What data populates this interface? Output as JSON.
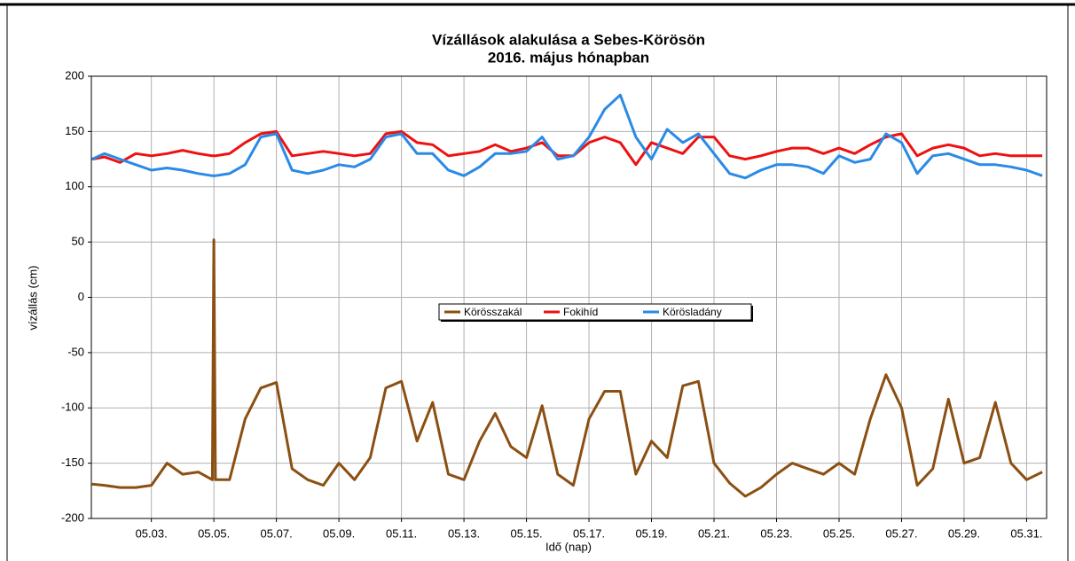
{
  "chart_data": {
    "type": "line",
    "title": "Vízállások alakulása a Sebes-Körösön",
    "subtitle": "2016. május hónapban",
    "x_label": "Idő (nap)",
    "y_label": "vízállás (cm)",
    "xlim": [
      1.08,
      31.64
    ],
    "ylim": [
      -200,
      200
    ],
    "xticks": [
      {
        "value": 3,
        "label": "05.03."
      },
      {
        "value": 5,
        "label": "05.05."
      },
      {
        "value": 7,
        "label": "05.07."
      },
      {
        "value": 9,
        "label": "05.09."
      },
      {
        "value": 11,
        "label": "05.11."
      },
      {
        "value": 13,
        "label": "05.13."
      },
      {
        "value": 15,
        "label": "05.15."
      },
      {
        "value": 17,
        "label": "05.17."
      },
      {
        "value": 19,
        "label": "05.19."
      },
      {
        "value": 21,
        "label": "05.21."
      },
      {
        "value": 23,
        "label": "05.23."
      },
      {
        "value": 25,
        "label": "05.25."
      },
      {
        "value": 27,
        "label": "05.27."
      },
      {
        "value": 29,
        "label": "05.29."
      },
      {
        "value": 31,
        "label": "05.31."
      }
    ],
    "yticks": [
      -200,
      -150,
      -100,
      -50,
      0,
      50,
      100,
      150,
      200
    ],
    "grid": true,
    "legend": "center",
    "x": [
      1.1,
      1.5,
      2,
      2.5,
      3,
      3.5,
      4,
      4.5,
      4.95,
      5,
      5.05,
      5.5,
      6,
      6.5,
      7,
      7.5,
      8,
      8.5,
      9,
      9.5,
      10,
      10.5,
      11,
      11.5,
      12,
      12.5,
      13,
      13.5,
      14,
      14.5,
      15,
      15.5,
      16,
      16.5,
      17,
      17.5,
      18,
      18.5,
      19,
      19.5,
      20,
      20.5,
      21,
      21.5,
      22,
      22.5,
      23,
      23.5,
      24,
      24.5,
      25,
      25.5,
      26,
      26.5,
      27,
      27.5,
      28,
      28.5,
      29,
      29.5,
      30,
      30.5,
      31,
      31.5
    ],
    "series": [
      {
        "name": "Körösszakál",
        "color": "#8b4f12",
        "values": [
          -169,
          -170,
          -172,
          -172,
          -170,
          -150,
          -160,
          -158,
          -165,
          52,
          -165,
          -165,
          -110,
          -82,
          -77,
          -155,
          -165,
          -170,
          -150,
          -165,
          -145,
          -82,
          -76,
          -130,
          -95,
          -160,
          -165,
          -130,
          -105,
          -135,
          -145,
          -98,
          -160,
          -170,
          -110,
          -85,
          -85,
          -160,
          -130,
          -145,
          -80,
          -76,
          -150,
          -168,
          -180,
          -172,
          -160,
          -150,
          -155,
          -160,
          -150,
          -160,
          -110,
          -70,
          -100,
          -170,
          -155,
          -92,
          -150,
          -145,
          -95,
          -150,
          -165,
          -158
        ]
      },
      {
        "name": "Fokihíd",
        "color": "#ee1111",
        "values": [
          125,
          127,
          122,
          130,
          128,
          130,
          133,
          130,
          128,
          128,
          128,
          130,
          140,
          148,
          150,
          128,
          130,
          132,
          130,
          128,
          130,
          148,
          150,
          140,
          138,
          128,
          130,
          132,
          138,
          132,
          135,
          140,
          128,
          128,
          140,
          145,
          140,
          120,
          140,
          135,
          130,
          145,
          145,
          128,
          125,
          128,
          132,
          135,
          135,
          130,
          135,
          130,
          138,
          145,
          148,
          128,
          135,
          138,
          135,
          128,
          130,
          128,
          128,
          128
        ]
      },
      {
        "name": "Körösladány",
        "color": "#2a8ae6",
        "values": [
          125,
          130,
          125,
          120,
          115,
          117,
          115,
          112,
          110,
          110,
          110,
          112,
          120,
          145,
          148,
          115,
          112,
          115,
          120,
          118,
          125,
          145,
          148,
          130,
          130,
          115,
          110,
          118,
          130,
          130,
          132,
          145,
          125,
          128,
          145,
          170,
          183,
          145,
          125,
          152,
          140,
          148,
          130,
          112,
          108,
          115,
          120,
          120,
          118,
          112,
          128,
          122,
          125,
          148,
          140,
          112,
          128,
          130,
          125,
          120,
          120,
          118,
          115,
          110
        ]
      }
    ]
  }
}
